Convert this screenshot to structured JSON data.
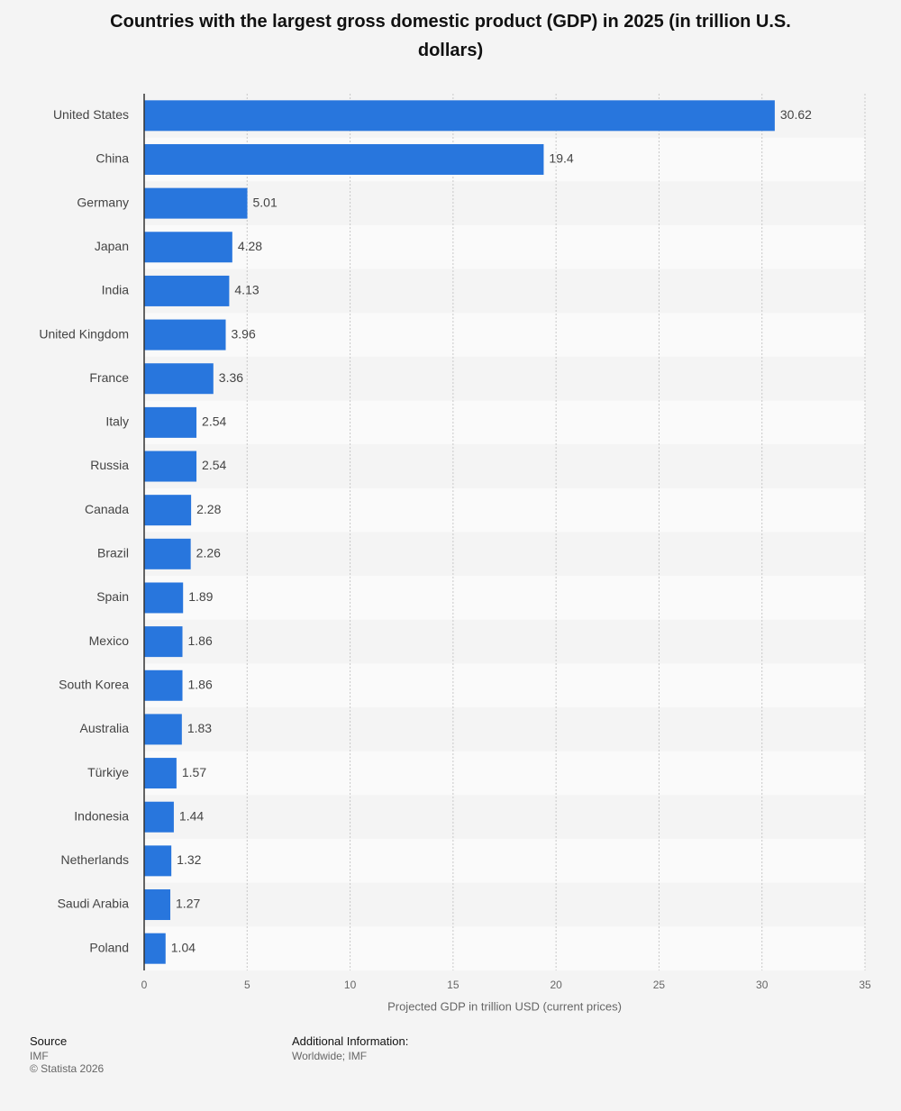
{
  "chart_data": {
    "type": "bar",
    "orientation": "horizontal",
    "title": "Countries with the largest gross domestic product (GDP) in 2025 (in trillion U.S. dollars)",
    "categories": [
      "United States",
      "China",
      "Germany",
      "Japan",
      "India",
      "United Kingdom",
      "France",
      "Italy",
      "Russia",
      "Canada",
      "Brazil",
      "Spain",
      "Mexico",
      "South Korea",
      "Australia",
      "Türkiye",
      "Indonesia",
      "Netherlands",
      "Saudi Arabia",
      "Poland"
    ],
    "values": [
      30.62,
      19.4,
      5.01,
      4.28,
      4.13,
      3.96,
      3.36,
      2.54,
      2.54,
      2.28,
      2.26,
      1.89,
      1.86,
      1.86,
      1.83,
      1.57,
      1.44,
      1.32,
      1.27,
      1.04
    ],
    "color": "#2876dd",
    "xlim": [
      0,
      35
    ],
    "xticks": [
      0,
      5,
      10,
      15,
      20,
      25,
      30,
      35
    ],
    "x_label": "Projected GDP in trillion USD (current prices)",
    "grid": true
  },
  "footer": {
    "source_label": "Source",
    "source": "IMF",
    "copyright": "© Statista 2026",
    "additional_label": "Additional Information:",
    "additional": "Worldwide; IMF"
  }
}
